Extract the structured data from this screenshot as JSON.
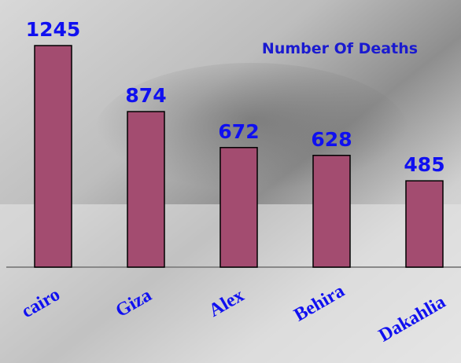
{
  "chart_data": {
    "type": "bar",
    "title": "Number Of Deaths",
    "categories": [
      "cairo",
      "Giza",
      "Alex",
      "Behira",
      "Dakahlia"
    ],
    "values": [
      1245,
      874,
      672,
      628,
      485
    ],
    "color": "#a34c70"
  }
}
